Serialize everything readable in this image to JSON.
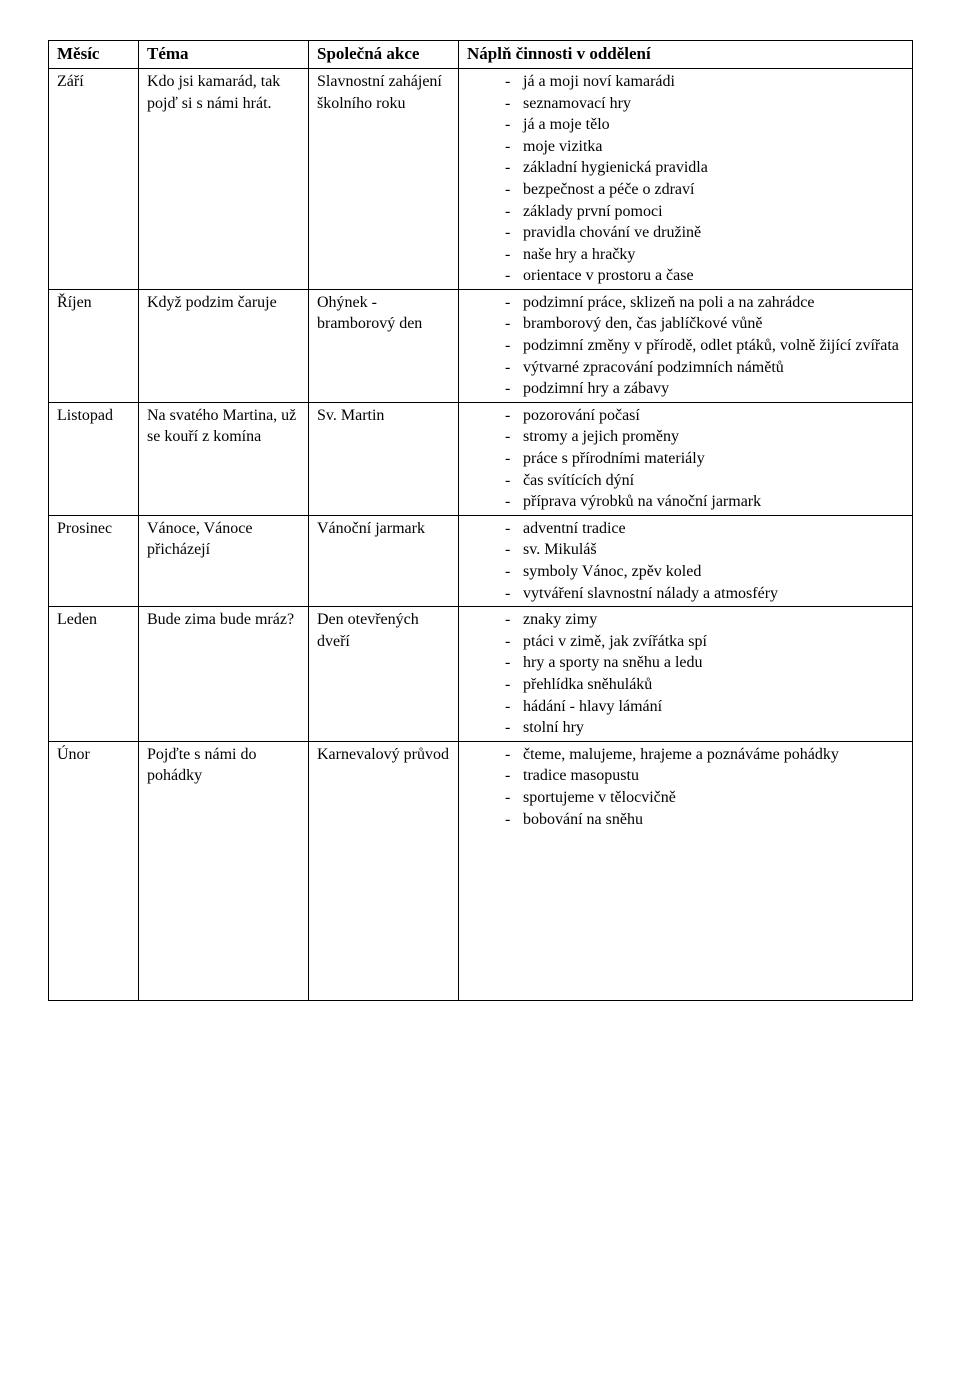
{
  "headers": {
    "month": "Měsíc",
    "theme": "Téma",
    "action": "Společná akce",
    "content": "Náplň činnosti v oddělení"
  },
  "rows": [
    {
      "month": "Září",
      "theme": "Kdo jsi kamarád, tak pojď si s námi hrát.",
      "action": "Slavnostní zahájení školního roku",
      "items": [
        "já a moji noví kamarádi",
        "seznamovací hry",
        "já a moje tělo",
        "moje vizitka",
        "základní hygienická pravidla",
        "bezpečnost a péče o zdraví",
        "základy první pomoci",
        "pravidla chování ve družině",
        "naše hry a hračky",
        "orientace v prostoru a čase"
      ]
    },
    {
      "month": "Říjen",
      "theme": "Když podzim čaruje",
      "action": "Ohýnek - bramborový den",
      "items": [
        "podzimní práce, sklizeň na poli a na zahrádce",
        "bramborový den, čas jablíčkové vůně",
        "podzimní změny v přírodě, odlet ptáků, volně žijící zvířata",
        "výtvarné zpracování podzimních námětů",
        "podzimní hry a zábavy"
      ]
    },
    {
      "month": "Listopad",
      "theme": "Na svatého Martina, už se kouří z komína",
      "action": "Sv. Martin",
      "items": [
        "pozorování počasí",
        "stromy a jejich proměny",
        "práce s přírodními materiály",
        "čas svítících dýní",
        "příprava výrobků na vánoční jarmark"
      ]
    },
    {
      "month": "Prosinec",
      "theme": "Vánoce, Vánoce přicházejí",
      "action": "Vánoční jarmark",
      "items": [
        "adventní tradice",
        "sv. Mikuláš",
        "symboly Vánoc, zpěv koled",
        "vytváření slavnostní nálady a atmosféry"
      ]
    },
    {
      "month": "Leden",
      "theme": "Bude zima bude mráz?",
      "action": "Den otevřených dveří",
      "items": [
        "znaky zimy",
        "ptáci v zimě, jak zvířátka spí",
        "hry a sporty na sněhu a ledu",
        "přehlídka sněhuláků",
        "hádání - hlavy lámání",
        "stolní hry"
      ]
    },
    {
      "month": "Únor",
      "theme": "Pojďte s námi do pohádky",
      "action": "Karnevalový průvod",
      "items": [
        "čteme, malujeme, hrajeme a poznáváme pohádky",
        "tradice masopustu",
        "sportujeme v tělocvičně",
        "bobování na sněhu"
      ],
      "tall": true
    }
  ]
}
